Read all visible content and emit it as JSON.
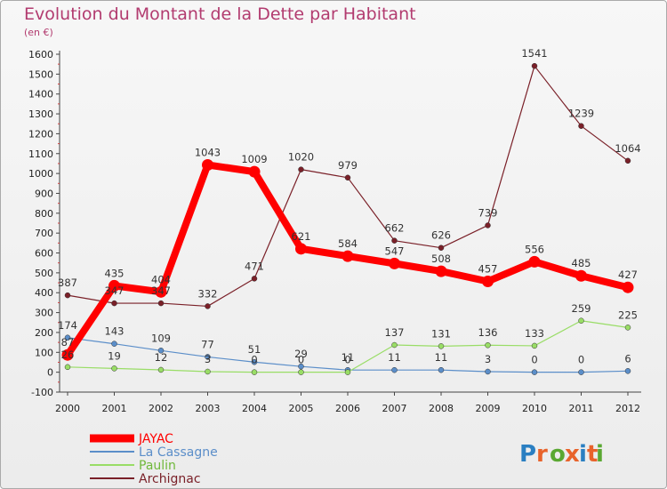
{
  "chart_data": {
    "type": "line",
    "title": "Evolution du Montant de la Dette par Habitant",
    "subtitle": "(en €)",
    "x": [
      "2000",
      "2001",
      "2002",
      "2003",
      "2004",
      "2005",
      "2006",
      "2007",
      "2008",
      "2009",
      "2010",
      "2011",
      "2012"
    ],
    "ylim": [
      -100,
      1600
    ],
    "yticks": [
      -100,
      0,
      100,
      200,
      300,
      400,
      500,
      600,
      700,
      800,
      900,
      1000,
      1100,
      1200,
      1300,
      1400,
      1500,
      1600
    ],
    "grid": false,
    "legend_position": "bottom-left",
    "series": [
      {
        "name": "JAYAC",
        "color": "#ff0000",
        "values": [
          87,
          435,
          404,
          1043,
          1009,
          621,
          584,
          547,
          508,
          457,
          556,
          485,
          427
        ]
      },
      {
        "name": "La Cassagne",
        "color": "#5b8ec9",
        "values": [
          174,
          143,
          109,
          77,
          51,
          29,
          11,
          11,
          11,
          3,
          0,
          0,
          6
        ]
      },
      {
        "name": "Paulin",
        "color": "#99dd66",
        "values": [
          26,
          19,
          12,
          3,
          0,
          0,
          0,
          137,
          131,
          136,
          133,
          259,
          225
        ]
      },
      {
        "name": "Archignac",
        "color": "#7a2028",
        "values": [
          387,
          347,
          347,
          332,
          471,
          1020,
          979,
          662,
          626,
          739,
          1541,
          1239,
          1064
        ]
      }
    ],
    "labels": {
      "JAYAC": [
        "87",
        "435",
        "404",
        "1043",
        "1009",
        "621",
        "584",
        "547",
        "508",
        "457",
        "556",
        "485",
        "427"
      ],
      "La Cassagne": [
        "174",
        "143",
        "109",
        "77",
        "51",
        "29",
        "11",
        "11",
        "11",
        "3",
        "0",
        "0",
        "6"
      ],
      "Paulin": [
        "26",
        "19",
        "12",
        "3",
        "0",
        "0",
        "0",
        "137",
        "131",
        "136",
        "133",
        "259",
        "225"
      ],
      "Archignac": [
        "387",
        "347",
        "347",
        "332",
        "471",
        "1020",
        "979",
        "662",
        "626",
        "739",
        "1541",
        "1239",
        "1064"
      ]
    }
  },
  "logo": {
    "text": "Proxiti",
    "colors": [
      "#2a7fc2",
      "#e8632b",
      "#5aa832",
      "#e8632b",
      "#2a7fc2",
      "#e8632b",
      "#5aa832"
    ]
  }
}
